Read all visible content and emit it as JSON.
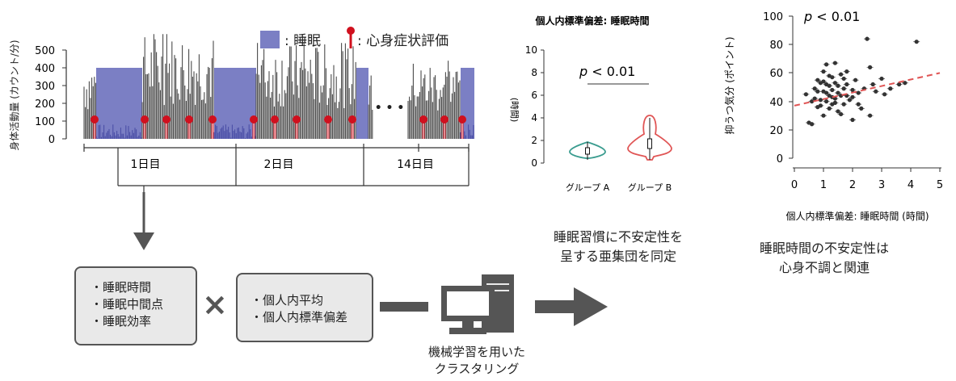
{
  "actigraphy": {
    "y_axis_label": "身体活動量 (カウント/分)",
    "y_ticks": [
      "500",
      "400",
      "300",
      "200",
      "100",
      "0"
    ],
    "legend_sleep": ": 睡眠",
    "legend_eval": ": 心身症状評価",
    "ellipsis": "• • •",
    "days": [
      "1日目",
      "2日目",
      "14日目"
    ],
    "colors": {
      "sleep": "#7b7fc4",
      "activity": "#4a4a4a",
      "marker": "#d0101e"
    }
  },
  "features": {
    "sleep_items": [
      "・睡眠時間",
      "・睡眠中間点",
      "・睡眠効率"
    ],
    "cross_symbol": "×",
    "stat_items": [
      "・個人内平均",
      "・個人内標準偏差"
    ]
  },
  "clustering_label_lines": [
    "機械学習を用いた",
    "クラスタリング"
  ],
  "subgroup_label_lines": [
    "睡眠習慣に不安定性を",
    "呈する亜集団を同定"
  ],
  "violin": {
    "title": "個人内標準偏差: 睡眠時間",
    "y_label": "(時間)",
    "y_ticks": [
      "10",
      "8",
      "6",
      "4",
      "2",
      "0"
    ],
    "p_text": "p",
    "p_rest": " < 0.01",
    "groups": [
      "グループ A",
      "グループ B"
    ],
    "colors": {
      "groupA": "#3a9c8f",
      "groupB": "#e05555"
    },
    "chart_data": {
      "type": "violin",
      "categories": [
        "グループ A",
        "グループ B"
      ],
      "medians": [
        1.0,
        1.8
      ],
      "ranges": [
        [
          0.3,
          1.9
        ],
        [
          0.3,
          4.2
        ]
      ],
      "ylim": [
        0,
        10
      ]
    }
  },
  "scatter": {
    "y_label": "抑うつ気分 (ポイント)",
    "x_label": "個人内標準偏差: 睡眠時間 (時間)",
    "y_ticks": [
      "100",
      "80",
      "60",
      "40",
      "20",
      "0"
    ],
    "x_ticks": [
      "0",
      "1",
      "2",
      "3",
      "4",
      "5"
    ],
    "p_text": "p",
    "p_rest": " < 0.01",
    "conclusion_lines": [
      "睡眠時間の不安定性は",
      "心身不調と関連"
    ],
    "colors": {
      "points": "#333333",
      "trend": "#e05555"
    },
    "chart_data": {
      "type": "scatter",
      "xlim": [
        0,
        5
      ],
      "ylim": [
        0,
        100
      ],
      "trend": {
        "x": [
          0,
          5
        ],
        "y": [
          37,
          60
        ]
      },
      "points": [
        [
          0.5,
          25
        ],
        [
          0.6,
          24
        ],
        [
          0.7,
          42
        ],
        [
          0.7,
          49
        ],
        [
          0.8,
          36
        ],
        [
          0.8,
          55
        ],
        [
          0.9,
          41
        ],
        [
          0.9,
          53
        ],
        [
          1.0,
          47
        ],
        [
          1.0,
          30
        ],
        [
          1.0,
          61
        ],
        [
          1.1,
          46
        ],
        [
          1.1,
          40
        ],
        [
          1.1,
          66
        ],
        [
          1.2,
          51
        ],
        [
          1.2,
          35
        ],
        [
          1.2,
          44
        ],
        [
          1.3,
          48
        ],
        [
          1.3,
          57
        ],
        [
          1.3,
          38
        ],
        [
          1.4,
          42
        ],
        [
          1.4,
          53
        ],
        [
          1.4,
          67
        ],
        [
          1.5,
          46
        ],
        [
          1.5,
          33
        ],
        [
          1.5,
          51
        ],
        [
          1.6,
          44
        ],
        [
          1.6,
          59
        ],
        [
          1.7,
          49
        ],
        [
          1.7,
          38
        ],
        [
          1.8,
          52
        ],
        [
          1.8,
          44
        ],
        [
          1.9,
          41
        ],
        [
          2.0,
          48
        ],
        [
          2.0,
          27
        ],
        [
          2.1,
          55
        ],
        [
          2.2,
          46
        ],
        [
          2.3,
          35
        ],
        [
          2.4,
          49
        ],
        [
          2.5,
          84
        ],
        [
          2.6,
          64
        ],
        [
          2.7,
          52
        ],
        [
          2.8,
          47
        ],
        [
          3.0,
          56
        ],
        [
          3.1,
          45
        ],
        [
          3.3,
          49
        ],
        [
          3.6,
          52
        ],
        [
          3.8,
          53
        ],
        [
          4.2,
          82
        ],
        [
          0.4,
          45
        ],
        [
          0.6,
          40
        ],
        [
          0.9,
          37
        ],
        [
          1.0,
          54
        ],
        [
          1.2,
          58
        ],
        [
          1.3,
          43
        ],
        [
          1.6,
          31
        ],
        [
          1.8,
          61
        ],
        [
          2.2,
          38
        ],
        [
          2.6,
          30
        ],
        [
          0.8,
          47
        ],
        [
          1.1,
          52
        ],
        [
          1.4,
          39
        ],
        [
          1.7,
          56
        ],
        [
          2.0,
          43
        ]
      ]
    }
  }
}
